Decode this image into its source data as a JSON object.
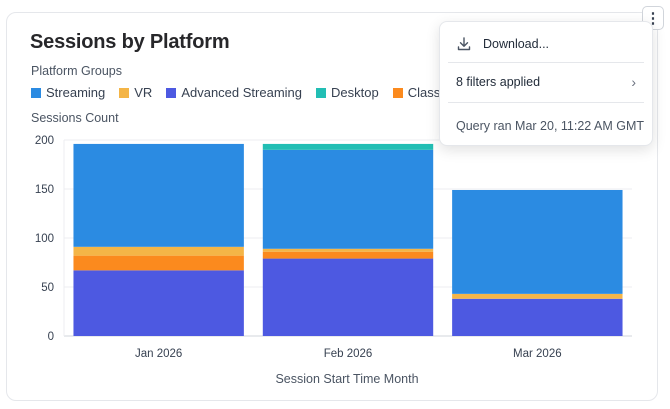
{
  "title": "Sessions by Platform",
  "legend": {
    "title": "Platform Groups",
    "items": [
      {
        "label": "Streaming",
        "color": "#2B8BE2"
      },
      {
        "label": "VR",
        "color": "#F4B547"
      },
      {
        "label": "Advanced Streaming",
        "color": "#4D59E1"
      },
      {
        "label": "Desktop",
        "color": "#22BEB4"
      },
      {
        "label": "Classroom",
        "color": "#FB8A1E"
      }
    ]
  },
  "menu": {
    "kebab_icon": "more-vertical-icon",
    "download_label": "Download...",
    "download_icon": "download-icon",
    "filters_label": "8 filters applied",
    "filters_icon": "chevron-right-icon",
    "query_label": "Query ran Mar 20, 11:22 AM GMT"
  },
  "chart_data": {
    "type": "bar",
    "stacked": true,
    "ylabel": "Sessions Count",
    "xlabel": "Session Start Time Month",
    "ylim": [
      0,
      200
    ],
    "yticks": [
      0,
      50,
      100,
      150,
      200
    ],
    "grid": true,
    "categories": [
      "Jan 2026",
      "Feb 2026",
      "Mar 2026"
    ],
    "series": [
      {
        "name": "Advanced Streaming",
        "color": "#4D59E1",
        "values": [
          67,
          79,
          38
        ]
      },
      {
        "name": "Classroom",
        "color": "#FB8A1E",
        "values": [
          15,
          7,
          0
        ]
      },
      {
        "name": "VR",
        "color": "#F4B547",
        "values": [
          9,
          3,
          5
        ]
      },
      {
        "name": "Streaming",
        "color": "#2B8BE2",
        "values": [
          105,
          101,
          106
        ]
      },
      {
        "name": "Desktop",
        "color": "#22BEB4",
        "values": [
          0,
          6,
          0
        ]
      }
    ]
  }
}
